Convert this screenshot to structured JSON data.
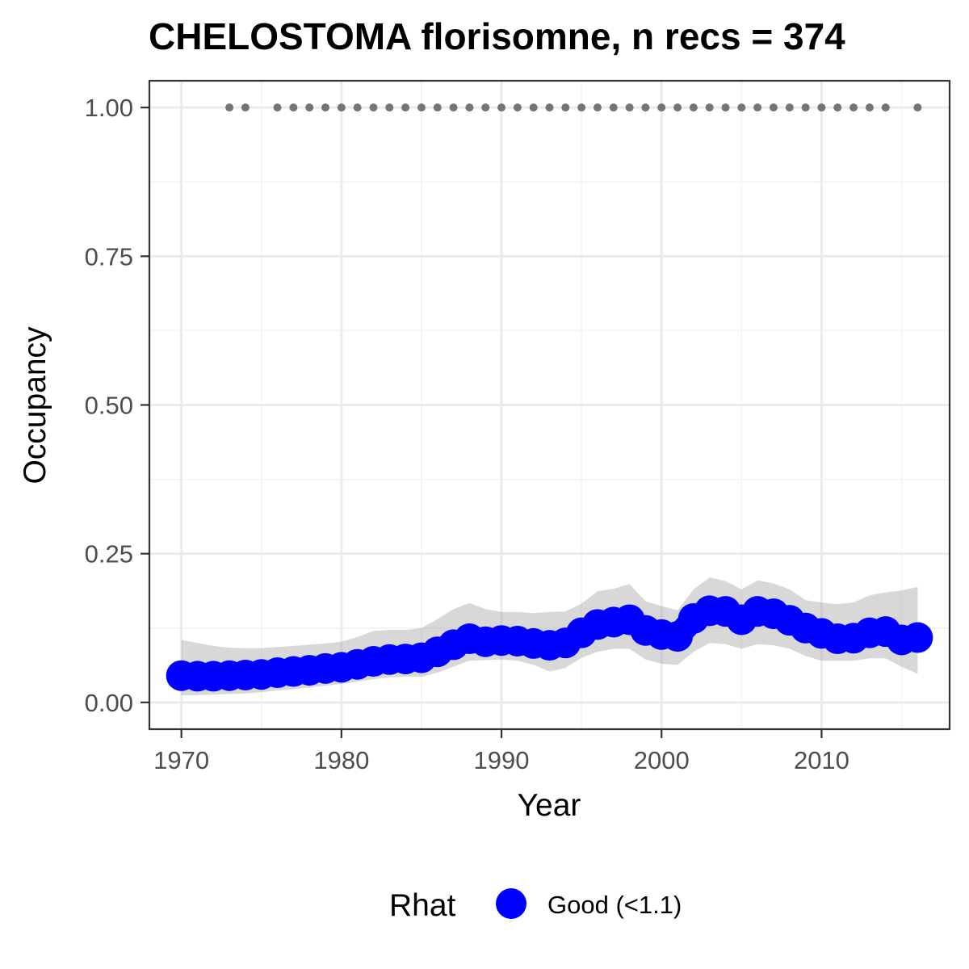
{
  "chart_data": {
    "type": "line",
    "title": "CHELOSTOMA florisomne, n recs = 374",
    "xlabel": "Year",
    "ylabel": "Occupancy",
    "xlim": [
      1968,
      2018
    ],
    "ylim": [
      -0.045,
      1.045
    ],
    "x_ticks": [
      1970,
      1980,
      1990,
      2000,
      2010
    ],
    "x_tick_labels": [
      "1970",
      "1980",
      "1990",
      "2000",
      "2010"
    ],
    "y_ticks": [
      0,
      0.25,
      0.5,
      0.75,
      1.0
    ],
    "y_tick_labels": [
      "0.00",
      "0.25",
      "0.50",
      "0.75",
      "1.00"
    ],
    "grid": true,
    "legend": {
      "title": "Rhat",
      "position": "bottom",
      "entries": [
        {
          "label": "Good (<1.1)",
          "color": "#0000ff"
        }
      ]
    },
    "series": [
      {
        "name": "Good (<1.1)",
        "color": "#0000ff",
        "x": [
          1970,
          1971,
          1972,
          1973,
          1974,
          1975,
          1976,
          1977,
          1978,
          1979,
          1980,
          1981,
          1982,
          1983,
          1984,
          1985,
          1986,
          1987,
          1988,
          1989,
          1990,
          1991,
          1992,
          1993,
          1994,
          1995,
          1996,
          1997,
          1998,
          1999,
          2000,
          2001,
          2002,
          2003,
          2004,
          2005,
          2006,
          2007,
          2008,
          2009,
          2010,
          2011,
          2012,
          2013,
          2014,
          2015,
          2016
        ],
        "y": [
          0.045,
          0.044,
          0.044,
          0.045,
          0.046,
          0.047,
          0.05,
          0.052,
          0.054,
          0.057,
          0.059,
          0.064,
          0.069,
          0.072,
          0.073,
          0.075,
          0.085,
          0.097,
          0.107,
          0.102,
          0.104,
          0.103,
          0.099,
          0.096,
          0.1,
          0.117,
          0.131,
          0.135,
          0.139,
          0.121,
          0.114,
          0.111,
          0.141,
          0.154,
          0.153,
          0.139,
          0.153,
          0.149,
          0.138,
          0.125,
          0.116,
          0.107,
          0.108,
          0.117,
          0.119,
          0.105,
          0.109
        ],
        "lower": [
          0.012,
          0.012,
          0.013,
          0.014,
          0.015,
          0.017,
          0.02,
          0.022,
          0.025,
          0.028,
          0.031,
          0.035,
          0.039,
          0.042,
          0.043,
          0.043,
          0.05,
          0.06,
          0.07,
          0.071,
          0.072,
          0.07,
          0.063,
          0.052,
          0.058,
          0.075,
          0.085,
          0.09,
          0.09,
          0.072,
          0.065,
          0.063,
          0.085,
          0.1,
          0.098,
          0.09,
          0.098,
          0.096,
          0.09,
          0.078,
          0.07,
          0.07,
          0.07,
          0.074,
          0.074,
          0.06,
          0.048
        ],
        "upper": [
          0.105,
          0.1,
          0.095,
          0.092,
          0.091,
          0.091,
          0.093,
          0.095,
          0.097,
          0.099,
          0.102,
          0.11,
          0.12,
          0.122,
          0.122,
          0.125,
          0.14,
          0.157,
          0.167,
          0.157,
          0.152,
          0.152,
          0.15,
          0.152,
          0.153,
          0.166,
          0.187,
          0.191,
          0.199,
          0.17,
          0.162,
          0.155,
          0.19,
          0.21,
          0.204,
          0.19,
          0.205,
          0.2,
          0.19,
          0.172,
          0.168,
          0.165,
          0.168,
          0.18,
          0.185,
          0.188,
          0.194
        ]
      }
    ],
    "detections": {
      "y": 1.0,
      "color": "#757575",
      "x": [
        1973,
        1974,
        1976,
        1977,
        1978,
        1979,
        1980,
        1981,
        1982,
        1983,
        1984,
        1985,
        1986,
        1987,
        1988,
        1989,
        1990,
        1991,
        1992,
        1993,
        1994,
        1995,
        1996,
        1997,
        1998,
        1999,
        2000,
        2001,
        2002,
        2003,
        2004,
        2005,
        2006,
        2007,
        2008,
        2009,
        2010,
        2011,
        2012,
        2013,
        2014,
        2016
      ]
    }
  }
}
